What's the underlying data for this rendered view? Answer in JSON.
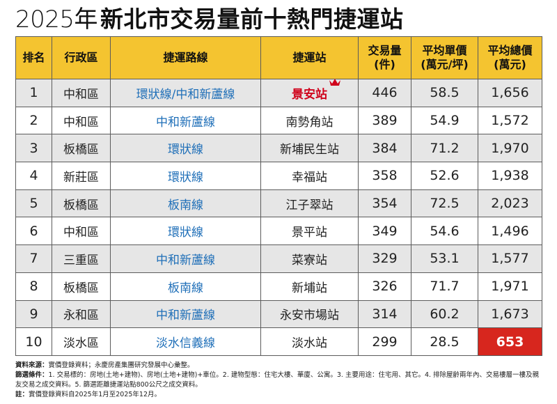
{
  "title": {
    "year": "2025年",
    "main": "新北市交易量前十熱門捷運站"
  },
  "table": {
    "headers": [
      "排名",
      "行政區",
      "捷運路線",
      "捷運站",
      "交易量\n(件)",
      "平均單價\n(萬元/坪)",
      "平均總價\n(萬元)"
    ],
    "rows": [
      [
        "1",
        "中和區",
        "環狀線/中和新蘆線",
        "景安站",
        "446",
        "58.5",
        "1,656"
      ],
      [
        "2",
        "中和區",
        "中和新蘆線",
        "南勢角站",
        "389",
        "54.9",
        "1,572"
      ],
      [
        "3",
        "板橋區",
        "環狀線",
        "新埔民生站",
        "384",
        "71.2",
        "1,970"
      ],
      [
        "4",
        "新莊區",
        "環狀線",
        "幸福站",
        "358",
        "52.6",
        "1,938"
      ],
      [
        "5",
        "板橋區",
        "板南線",
        "江子翠站",
        "354",
        "72.5",
        "2,023"
      ],
      [
        "6",
        "中和區",
        "環狀線",
        "景平站",
        "349",
        "54.6",
        "1,496"
      ],
      [
        "7",
        "三重區",
        "中和新蘆線",
        "菜寮站",
        "329",
        "53.1",
        "1,577"
      ],
      [
        "8",
        "板橋區",
        "板南線",
        "新埔站",
        "326",
        "71.7",
        "1,971"
      ],
      [
        "9",
        "永和區",
        "中和新蘆線",
        "永安市場站",
        "314",
        "60.2",
        "1,673"
      ],
      [
        "10",
        "淡水區",
        "淡水信義線",
        "淡水站",
        "299",
        "28.5",
        "653"
      ]
    ]
  },
  "colors": {
    "header_bg": "#f4c430",
    "route_text": "#1f6fb8",
    "highlight_red": "#d0021b",
    "highlight_cell_bg": "#d7261e",
    "stripe_bg": "#e6e6e6"
  },
  "icons": {
    "crown": "crown-icon"
  },
  "notes": {
    "source_label": "資料來源：",
    "source_text": "實價登錄資料；永慶房產集團研究發展中心彙整。",
    "criteria_label": "篩選條件：",
    "criteria_text": "1. 交易標的：房地(土地+建物)、房地(土地+建物)+車位。2. 建物型態：住宅大樓、華廈、公寓。3. 主要用途：住宅用、其它。4. 排除屋齡兩年內、交易樓層一樓及親友交易之成交資料。5. 篩選距離捷運站點800公尺之成交資料。",
    "note_label": "註：",
    "note_text": "實價登錄資料自2025年1月至2025年12月。"
  },
  "chart_data": {
    "type": "table",
    "title": "2025年新北市交易量前十熱門捷運站",
    "columns": [
      "排名",
      "行政區",
      "捷運路線",
      "捷運站",
      "交易量(件)",
      "平均單價(萬元/坪)",
      "平均總價(萬元)"
    ],
    "categories": [
      "景安站",
      "南勢角站",
      "新埔民生站",
      "幸福站",
      "江子翠站",
      "景平站",
      "菜寮站",
      "新埔站",
      "永安市場站",
      "淡水站"
    ],
    "series": [
      {
        "name": "交易量(件)",
        "values": [
          446,
          389,
          384,
          358,
          354,
          349,
          329,
          326,
          314,
          299
        ]
      },
      {
        "name": "平均單價(萬元/坪)",
        "values": [
          58.5,
          54.9,
          71.2,
          52.6,
          72.5,
          54.6,
          53.1,
          71.7,
          60.2,
          28.5
        ]
      },
      {
        "name": "平均總價(萬元)",
        "values": [
          1656,
          1572,
          1970,
          1938,
          2023,
          1496,
          1577,
          1971,
          1673,
          653
        ]
      }
    ]
  }
}
